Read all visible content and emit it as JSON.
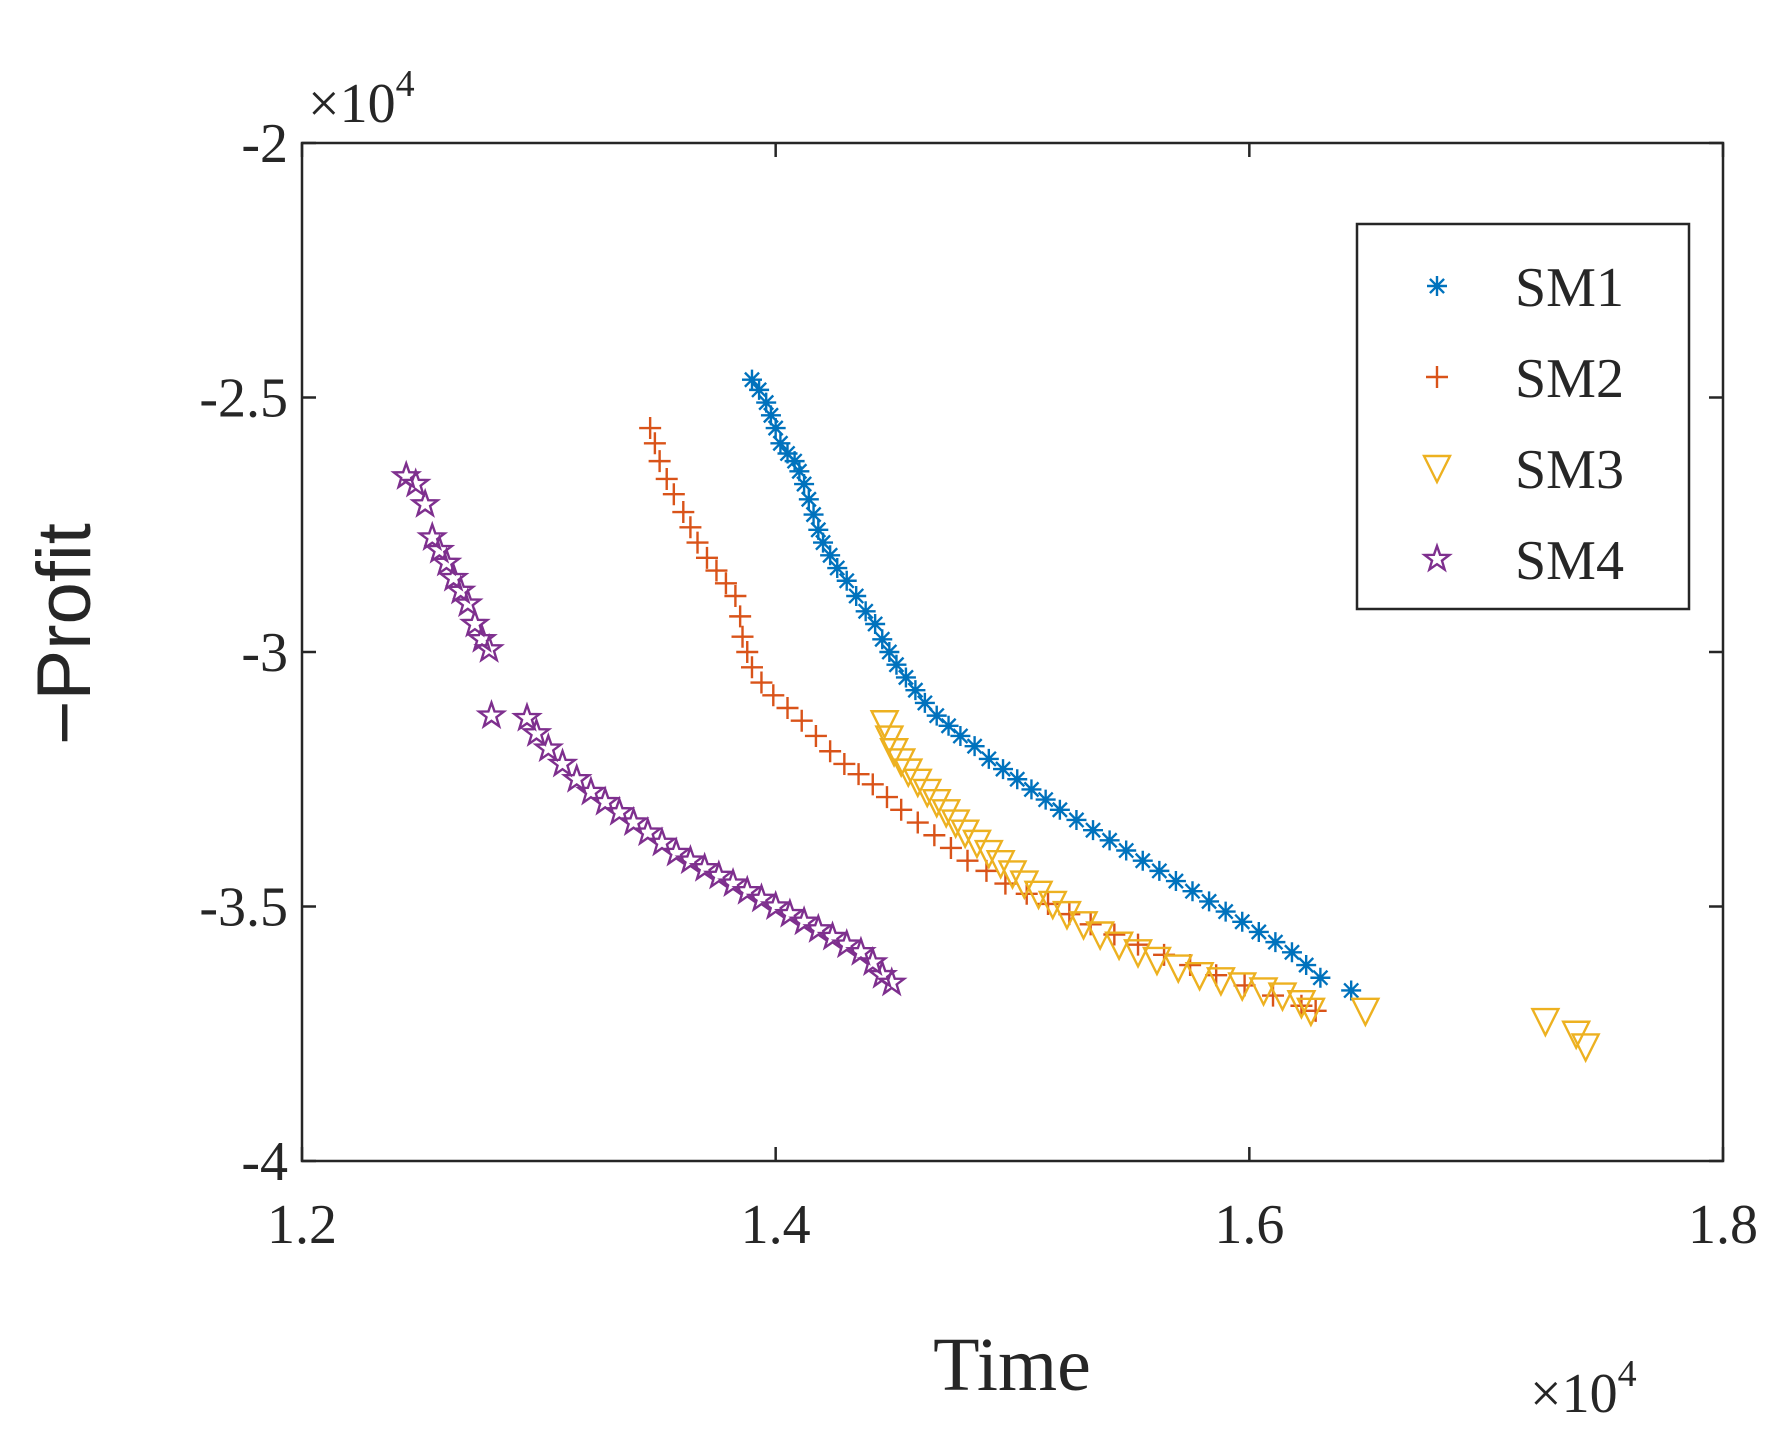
{
  "chart_data": {
    "type": "scatter",
    "xlabel": "Time",
    "ylabel": "−Profit",
    "x_exponent_label": "×10",
    "x_exponent_power": "4",
    "y_exponent_label": "×10",
    "y_exponent_power": "4",
    "xlim": [
      1.2,
      1.8
    ],
    "ylim": [
      -4,
      -2
    ],
    "x_ticks": [
      1.2,
      1.4,
      1.6,
      1.8
    ],
    "x_tick_labels": [
      "1.2",
      "1.4",
      "1.6",
      "1.8"
    ],
    "y_ticks": [
      -4,
      -3.5,
      -3,
      -2.5,
      -2
    ],
    "y_tick_labels": [
      "-4",
      "-3.5",
      "-3",
      "-2.5",
      "-2"
    ],
    "grid": false,
    "legend_position": "top-right",
    "series": [
      {
        "name": "SM1",
        "marker": "asterisk",
        "color": "#0072BD",
        "points": [
          [
            1.39,
            -2.465
          ],
          [
            1.393,
            -2.485
          ],
          [
            1.396,
            -2.51
          ],
          [
            1.398,
            -2.535
          ],
          [
            1.4,
            -2.56
          ],
          [
            1.402,
            -2.59
          ],
          [
            1.405,
            -2.61
          ],
          [
            1.408,
            -2.625
          ],
          [
            1.41,
            -2.645
          ],
          [
            1.412,
            -2.67
          ],
          [
            1.414,
            -2.7
          ],
          [
            1.416,
            -2.73
          ],
          [
            1.418,
            -2.76
          ],
          [
            1.42,
            -2.785
          ],
          [
            1.423,
            -2.81
          ],
          [
            1.426,
            -2.835
          ],
          [
            1.43,
            -2.86
          ],
          [
            1.434,
            -2.89
          ],
          [
            1.438,
            -2.92
          ],
          [
            1.442,
            -2.945
          ],
          [
            1.445,
            -2.975
          ],
          [
            1.448,
            -3.0
          ],
          [
            1.451,
            -3.025
          ],
          [
            1.455,
            -3.05
          ],
          [
            1.459,
            -3.075
          ],
          [
            1.463,
            -3.1
          ],
          [
            1.468,
            -3.125
          ],
          [
            1.473,
            -3.145
          ],
          [
            1.478,
            -3.165
          ],
          [
            1.484,
            -3.185
          ],
          [
            1.49,
            -3.21
          ],
          [
            1.496,
            -3.23
          ],
          [
            1.502,
            -3.25
          ],
          [
            1.508,
            -3.27
          ],
          [
            1.514,
            -3.29
          ],
          [
            1.52,
            -3.31
          ],
          [
            1.527,
            -3.33
          ],
          [
            1.534,
            -3.35
          ],
          [
            1.541,
            -3.37
          ],
          [
            1.548,
            -3.39
          ],
          [
            1.555,
            -3.41
          ],
          [
            1.562,
            -3.43
          ],
          [
            1.569,
            -3.45
          ],
          [
            1.576,
            -3.47
          ],
          [
            1.583,
            -3.49
          ],
          [
            1.59,
            -3.51
          ],
          [
            1.597,
            -3.53
          ],
          [
            1.604,
            -3.55
          ],
          [
            1.611,
            -3.57
          ],
          [
            1.618,
            -3.59
          ],
          [
            1.624,
            -3.615
          ],
          [
            1.63,
            -3.64
          ],
          [
            1.643,
            -3.665
          ]
        ]
      },
      {
        "name": "SM2",
        "marker": "plus",
        "color": "#D95319",
        "points": [
          [
            1.347,
            -2.56
          ],
          [
            1.349,
            -2.59
          ],
          [
            1.351,
            -2.625
          ],
          [
            1.354,
            -2.66
          ],
          [
            1.357,
            -2.69
          ],
          [
            1.361,
            -2.725
          ],
          [
            1.364,
            -2.755
          ],
          [
            1.367,
            -2.785
          ],
          [
            1.371,
            -2.815
          ],
          [
            1.375,
            -2.84
          ],
          [
            1.379,
            -2.865
          ],
          [
            1.383,
            -2.89
          ],
          [
            1.385,
            -2.93
          ],
          [
            1.386,
            -2.97
          ],
          [
            1.388,
            -3.0
          ],
          [
            1.39,
            -3.03
          ],
          [
            1.394,
            -3.06
          ],
          [
            1.399,
            -3.085
          ],
          [
            1.405,
            -3.11
          ],
          [
            1.411,
            -3.135
          ],
          [
            1.417,
            -3.165
          ],
          [
            1.423,
            -3.195
          ],
          [
            1.429,
            -3.22
          ],
          [
            1.435,
            -3.24
          ],
          [
            1.441,
            -3.26
          ],
          [
            1.447,
            -3.285
          ],
          [
            1.453,
            -3.31
          ],
          [
            1.46,
            -3.335
          ],
          [
            1.467,
            -3.36
          ],
          [
            1.474,
            -3.385
          ],
          [
            1.481,
            -3.41
          ],
          [
            1.489,
            -3.43
          ],
          [
            1.497,
            -3.455
          ],
          [
            1.506,
            -3.475
          ],
          [
            1.515,
            -3.495
          ],
          [
            1.524,
            -3.515
          ],
          [
            1.533,
            -3.535
          ],
          [
            1.543,
            -3.555
          ],
          [
            1.553,
            -3.575
          ],
          [
            1.564,
            -3.595
          ],
          [
            1.575,
            -3.615
          ],
          [
            1.586,
            -3.635
          ],
          [
            1.598,
            -3.655
          ],
          [
            1.61,
            -3.675
          ],
          [
            1.622,
            -3.695
          ],
          [
            1.628,
            -3.705
          ]
        ]
      },
      {
        "name": "SM3",
        "marker": "triangle-down",
        "color": "#EDB120",
        "points": [
          [
            1.446,
            -3.14
          ],
          [
            1.448,
            -3.17
          ],
          [
            1.45,
            -3.195
          ],
          [
            1.453,
            -3.215
          ],
          [
            1.456,
            -3.235
          ],
          [
            1.46,
            -3.255
          ],
          [
            1.464,
            -3.275
          ],
          [
            1.468,
            -3.295
          ],
          [
            1.472,
            -3.315
          ],
          [
            1.476,
            -3.335
          ],
          [
            1.48,
            -3.355
          ],
          [
            1.485,
            -3.375
          ],
          [
            1.49,
            -3.395
          ],
          [
            1.495,
            -3.415
          ],
          [
            1.5,
            -3.435
          ],
          [
            1.505,
            -3.455
          ],
          [
            1.511,
            -3.475
          ],
          [
            1.517,
            -3.495
          ],
          [
            1.523,
            -3.515
          ],
          [
            1.53,
            -3.535
          ],
          [
            1.537,
            -3.555
          ],
          [
            1.545,
            -3.575
          ],
          [
            1.553,
            -3.59
          ],
          [
            1.561,
            -3.605
          ],
          [
            1.57,
            -3.62
          ],
          [
            1.579,
            -3.635
          ],
          [
            1.588,
            -3.645
          ],
          [
            1.597,
            -3.655
          ],
          [
            1.606,
            -3.665
          ],
          [
            1.614,
            -3.675
          ],
          [
            1.622,
            -3.69
          ],
          [
            1.626,
            -3.705
          ],
          [
            1.649,
            -3.705
          ],
          [
            1.725,
            -3.725
          ],
          [
            1.738,
            -3.75
          ],
          [
            1.742,
            -3.775
          ]
        ]
      },
      {
        "name": "SM4",
        "marker": "pentagram",
        "color": "#7E2F8E",
        "points": [
          [
            1.244,
            -2.655
          ],
          [
            1.248,
            -2.67
          ],
          [
            1.252,
            -2.71
          ],
          [
            1.255,
            -2.775
          ],
          [
            1.258,
            -2.8
          ],
          [
            1.261,
            -2.825
          ],
          [
            1.264,
            -2.855
          ],
          [
            1.267,
            -2.88
          ],
          [
            1.27,
            -2.905
          ],
          [
            1.273,
            -2.945
          ],
          [
            1.276,
            -2.975
          ],
          [
            1.279,
            -2.995
          ],
          [
            1.28,
            -3.125
          ],
          [
            1.295,
            -3.13
          ],
          [
            1.299,
            -3.16
          ],
          [
            1.304,
            -3.19
          ],
          [
            1.31,
            -3.22
          ],
          [
            1.316,
            -3.25
          ],
          [
            1.322,
            -3.275
          ],
          [
            1.328,
            -3.295
          ],
          [
            1.334,
            -3.315
          ],
          [
            1.34,
            -3.335
          ],
          [
            1.346,
            -3.355
          ],
          [
            1.352,
            -3.375
          ],
          [
            1.358,
            -3.395
          ],
          [
            1.364,
            -3.41
          ],
          [
            1.37,
            -3.425
          ],
          [
            1.376,
            -3.44
          ],
          [
            1.382,
            -3.455
          ],
          [
            1.388,
            -3.47
          ],
          [
            1.394,
            -3.485
          ],
          [
            1.4,
            -3.5
          ],
          [
            1.406,
            -3.515
          ],
          [
            1.412,
            -3.53
          ],
          [
            1.418,
            -3.545
          ],
          [
            1.424,
            -3.56
          ],
          [
            1.43,
            -3.575
          ],
          [
            1.436,
            -3.59
          ],
          [
            1.441,
            -3.61
          ],
          [
            1.445,
            -3.635
          ],
          [
            1.449,
            -3.65
          ]
        ]
      }
    ]
  }
}
